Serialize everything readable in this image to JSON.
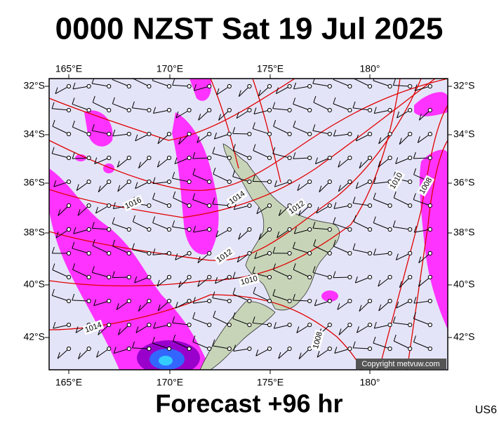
{
  "header": {
    "title": "0000 NZST Sat 19 Jul 2025"
  },
  "map": {
    "lon_labels": [
      "165°E",
      "170°E",
      "175°E",
      "180°"
    ],
    "lat_labels": [
      "32°S",
      "34°S",
      "36°S",
      "38°S",
      "40°S",
      "42°S"
    ],
    "isobar_labels": [
      "1016",
      "1014",
      "1012",
      "1012",
      "1010",
      "1014",
      "1008",
      "1010",
      "1008"
    ],
    "copyright": "Copyright metvuw.com"
  },
  "footer": {
    "forecast": "Forecast +96 hr",
    "code": "US6"
  }
}
